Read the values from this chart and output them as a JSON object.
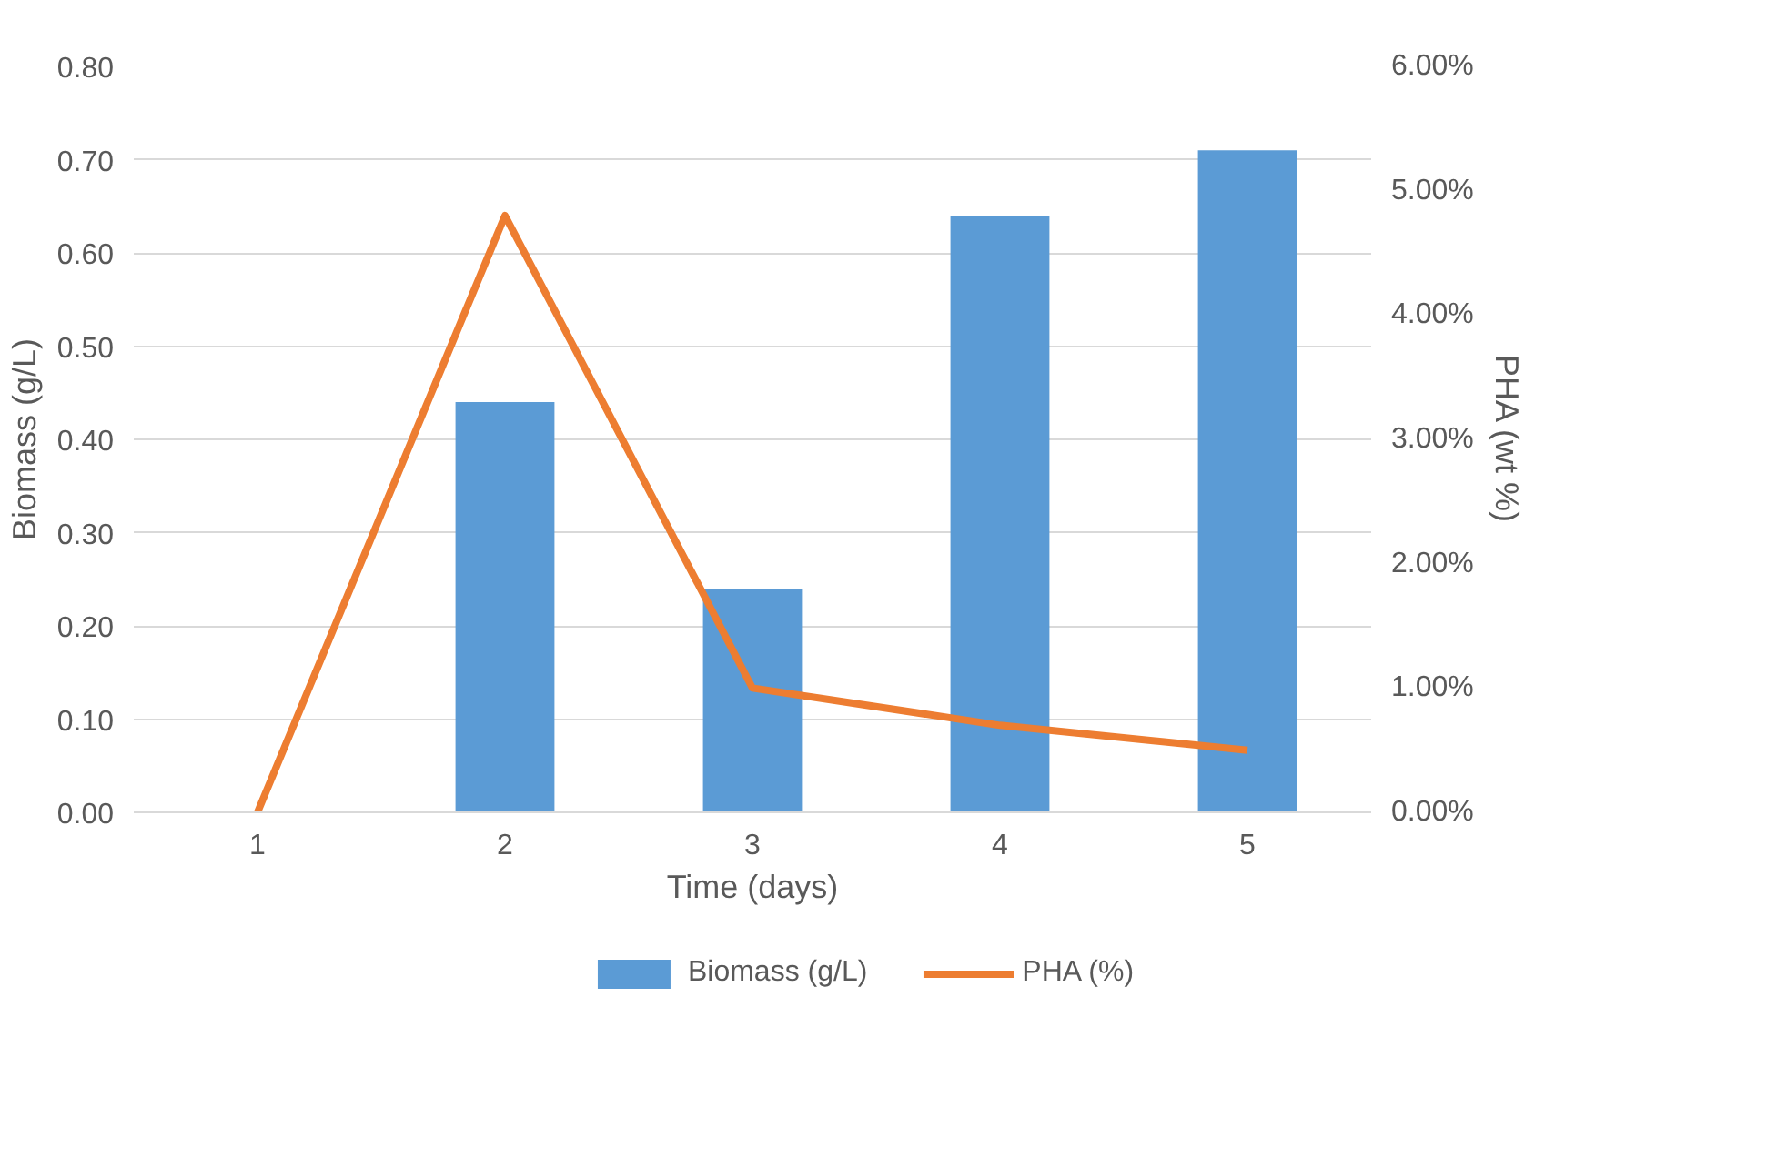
{
  "chart_data": {
    "type": "bar",
    "xlabel": "Time (days)",
    "ylabel": "Biomass (g/L)",
    "y2label": "PHA (wt %)",
    "categories": [
      "1",
      "2",
      "3",
      "4",
      "5"
    ],
    "series": [
      {
        "name": "Biomass (g/L)",
        "type": "bar",
        "color": "#5b9bd5",
        "values": [
          0,
          0.44,
          0.24,
          0.64,
          0.71
        ]
      },
      {
        "name": "PHA (%)",
        "type": "line",
        "axis": "y2",
        "color": "#ed7d31",
        "values": [
          0,
          4.8,
          1.0,
          0.7,
          0.5
        ]
      }
    ],
    "ylim": [
      0,
      0.8
    ],
    "yticks": [
      {
        "value": 0,
        "label": "0.00"
      },
      {
        "value": 0.1,
        "label": "0.10"
      },
      {
        "value": 0.2,
        "label": "0.20"
      },
      {
        "value": 0.3,
        "label": "0.30"
      },
      {
        "value": 0.4,
        "label": "0.40"
      },
      {
        "value": 0.5,
        "label": "0.50"
      },
      {
        "value": 0.6,
        "label": "0.60"
      },
      {
        "value": 0.7,
        "label": "0.70"
      },
      {
        "value": 0.8,
        "label": "0.80"
      }
    ],
    "y2lim": [
      0,
      6
    ],
    "y2ticks": [
      {
        "value": 0,
        "label": "0.00%"
      },
      {
        "value": 1,
        "label": "1.00%"
      },
      {
        "value": 2,
        "label": "2.00%"
      },
      {
        "value": 3,
        "label": "3.00%"
      },
      {
        "value": 4,
        "label": "4.00%"
      },
      {
        "value": 5,
        "label": "5.00%"
      },
      {
        "value": 6,
        "label": "6.00%"
      }
    ],
    "grid": "y",
    "legend": "bottom",
    "marker": "none",
    "line_style": "solid"
  }
}
